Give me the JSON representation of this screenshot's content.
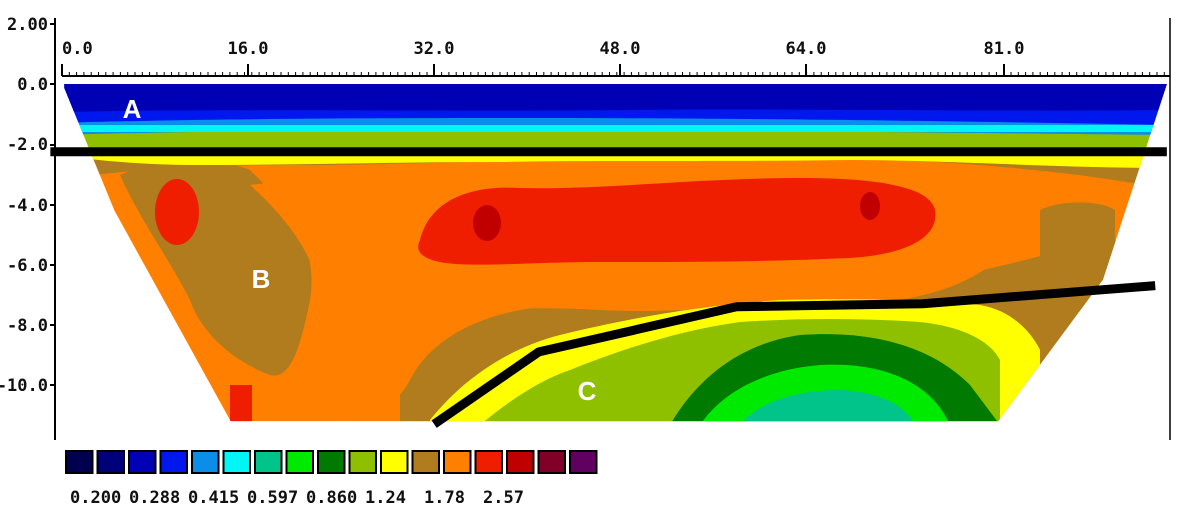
{
  "chart_data": {
    "type": "heatmap",
    "title": "",
    "xlabel": "",
    "ylabel": "",
    "x_ticks": [
      "0.0",
      "16.0",
      "32.0",
      "48.0",
      "64.0",
      "81.0"
    ],
    "y_ticks": [
      "2.00",
      "0.0",
      "-2.0",
      "-4.0",
      "-6.0",
      "-8.0",
      "-10.0"
    ],
    "xlim": [
      0,
      95
    ],
    "ylim": [
      -12,
      2
    ],
    "grid": false,
    "section_surface_y": 0,
    "section_bottom_y": -11.2,
    "legend": {
      "placement": "bottom-left",
      "colors": [
        "#00004f",
        "#00007a",
        "#0000b4",
        "#0018ee",
        "#0a8ee8",
        "#00f5f5",
        "#00c48a",
        "#00ea00",
        "#007a00",
        "#8fc000",
        "#ffff00",
        "#b07c1d",
        "#ff7f00",
        "#f01e00",
        "#c00000",
        "#800028",
        "#600060"
      ],
      "labels": [
        "0.200",
        "0.288",
        "0.415",
        "0.597",
        "0.860",
        "1.24",
        "1.78",
        "2.57"
      ]
    },
    "zones": [
      {
        "label": "A",
        "x": 6,
        "y": -0.8,
        "color": "#0a22c0"
      },
      {
        "label": "B",
        "x": 17,
        "y": -6.5,
        "color": "#b07c1d"
      },
      {
        "label": "C",
        "x": 45,
        "y": -10.3,
        "color": "#8fc000"
      }
    ],
    "boundaries": [
      [
        [
          -1,
          -2.25
        ],
        [
          95,
          -2.25
        ]
      ],
      [
        [
          32,
          -11.3
        ],
        [
          41,
          -8.9
        ],
        [
          58,
          -7.4
        ],
        [
          74,
          -7.3
        ],
        [
          94,
          -6.7
        ]
      ]
    ]
  }
}
